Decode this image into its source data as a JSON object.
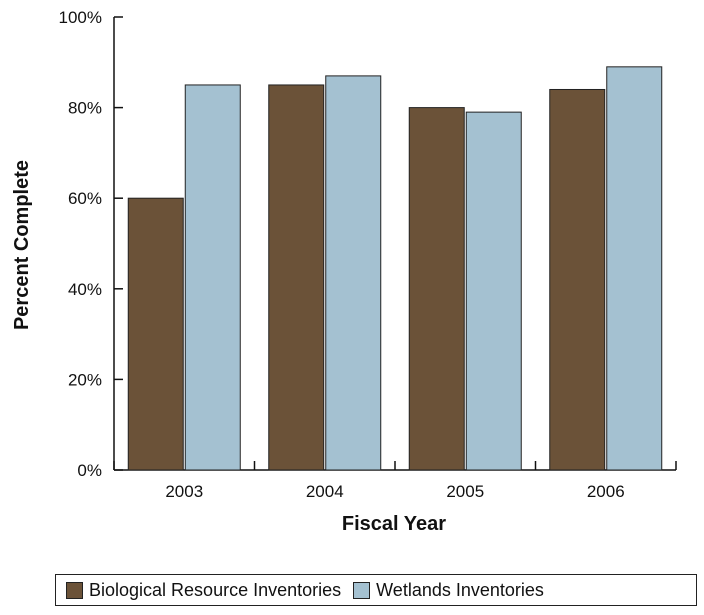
{
  "chart_data": {
    "type": "bar",
    "categories": [
      "2003",
      "2004",
      "2005",
      "2006"
    ],
    "series": [
      {
        "name": "Biological Resource Inventories",
        "color": "#6b5238",
        "values": [
          60,
          85,
          80,
          84
        ]
      },
      {
        "name": "Wetlands Inventories",
        "color": "#a4c1d1",
        "values": [
          85,
          87,
          79,
          89
        ]
      }
    ],
    "xlabel": "Fiscal Year",
    "ylabel": "Percent Complete",
    "ylim": [
      0,
      100
    ],
    "yticks": [
      0,
      20,
      40,
      60,
      80,
      100
    ],
    "ytick_format": "{v}%",
    "grid": false,
    "legend_position": "bottom"
  }
}
